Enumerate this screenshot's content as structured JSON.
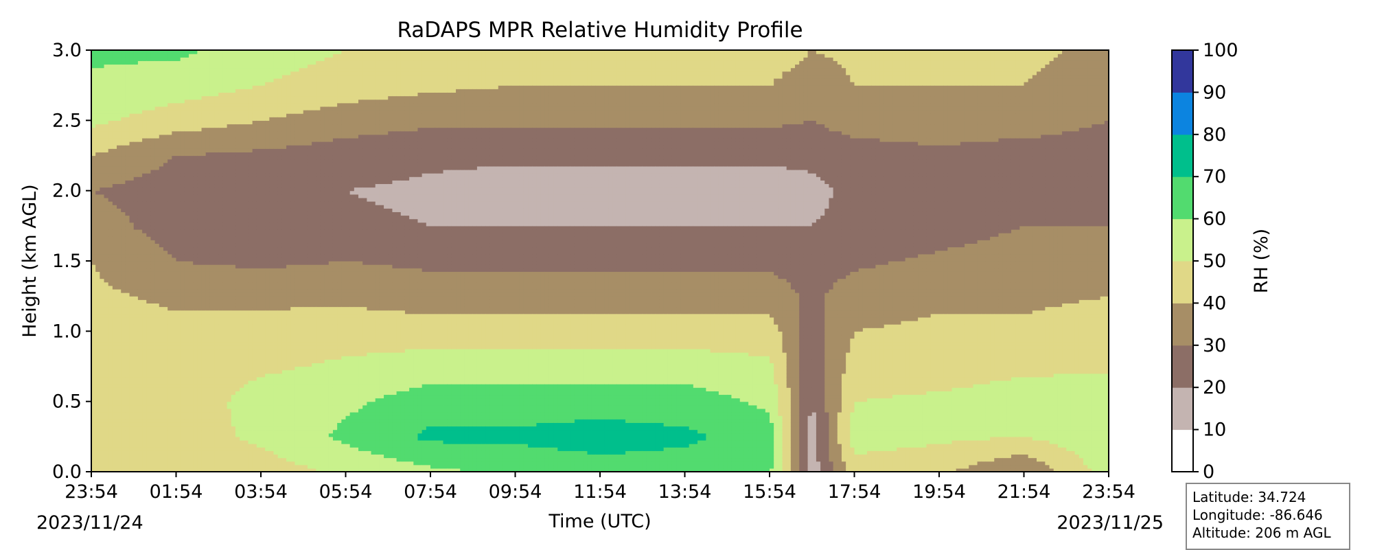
{
  "chart_data": {
    "type": "heatmap",
    "title": "RaDAPS MPR Relative Humidity Profile",
    "xlabel": "Time (UTC)",
    "ylabel": "Height (km AGL)",
    "x_ticks": [
      "23:54",
      "01:54",
      "03:54",
      "05:54",
      "07:54",
      "09:54",
      "11:54",
      "13:54",
      "15:54",
      "17:54",
      "19:54",
      "21:54",
      "23:54"
    ],
    "start_date": "2023/11/24",
    "end_date": "2023/11/25",
    "y_ticks": [
      "0.0",
      "0.5",
      "1.0",
      "1.5",
      "2.0",
      "2.5",
      "3.0"
    ],
    "ylim": [
      0,
      3.0
    ],
    "colorbar": {
      "label": "RH (%)",
      "ticks": [
        "0",
        "10",
        "20",
        "30",
        "40",
        "50",
        "60",
        "70",
        "80",
        "90",
        "100"
      ],
      "levels": [
        0,
        10,
        20,
        30,
        40,
        50,
        60,
        70,
        80,
        90,
        100
      ],
      "colors": [
        "#ffffff",
        "#c4b4b1",
        "#8c6e66",
        "#a78e66",
        "#e0d887",
        "#c9f18c",
        "#52db6f",
        "#00bf8c",
        "#0c84e0",
        "#32379c"
      ]
    },
    "rh_profile_grid": {
      "hours_from_start": [
        0,
        2,
        4,
        6,
        8,
        10,
        12,
        14,
        16,
        17,
        18,
        20,
        22,
        24
      ],
      "heights_km": [
        0.0,
        0.25,
        0.5,
        0.75,
        1.0,
        1.25,
        1.5,
        1.75,
        2.0,
        2.25,
        2.5,
        2.75,
        3.0
      ],
      "rh_percent": [
        [
          45,
          48,
          42,
          45,
          45,
          42,
          40,
          35,
          30,
          40,
          52,
          58,
          62
        ],
        [
          45,
          45,
          42,
          43,
          43,
          38,
          30,
          25,
          25,
          30,
          45,
          55,
          62
        ],
        [
          45,
          52,
          55,
          48,
          43,
          38,
          28,
          22,
          22,
          28,
          40,
          50,
          55
        ],
        [
          52,
          62,
          58,
          52,
          45,
          38,
          30,
          22,
          20,
          25,
          35,
          45,
          50
        ],
        [
          58,
          72,
          65,
          55,
          45,
          35,
          28,
          20,
          18,
          22,
          32,
          42,
          48
        ],
        [
          62,
          72,
          65,
          55,
          45,
          35,
          28,
          20,
          15,
          22,
          32,
          40,
          45
        ],
        [
          65,
          75,
          65,
          55,
          45,
          35,
          28,
          20,
          15,
          22,
          32,
          40,
          45
        ],
        [
          65,
          72,
          65,
          55,
          45,
          35,
          28,
          20,
          15,
          22,
          32,
          40,
          45
        ],
        [
          62,
          65,
          58,
          52,
          45,
          35,
          28,
          20,
          15,
          22,
          32,
          40,
          45
        ],
        [
          15,
          15,
          20,
          22,
          25,
          28,
          25,
          20,
          18,
          22,
          30,
          35,
          40
        ],
        [
          45,
          55,
          50,
          45,
          40,
          35,
          28,
          22,
          22,
          25,
          35,
          40,
          42
        ],
        [
          42,
          52,
          52,
          45,
          42,
          38,
          32,
          25,
          25,
          28,
          35,
          40,
          42
        ],
        [
          30,
          50,
          55,
          48,
          42,
          38,
          35,
          30,
          25,
          25,
          35,
          40,
          42
        ],
        [
          55,
          58,
          58,
          48,
          45,
          40,
          38,
          30,
          25,
          25,
          30,
          35,
          38
        ]
      ]
    }
  },
  "info": {
    "latitude": "Latitude: 34.724",
    "longitude": "Longitude: -86.646",
    "altitude": "Altitude: 206 m AGL"
  }
}
